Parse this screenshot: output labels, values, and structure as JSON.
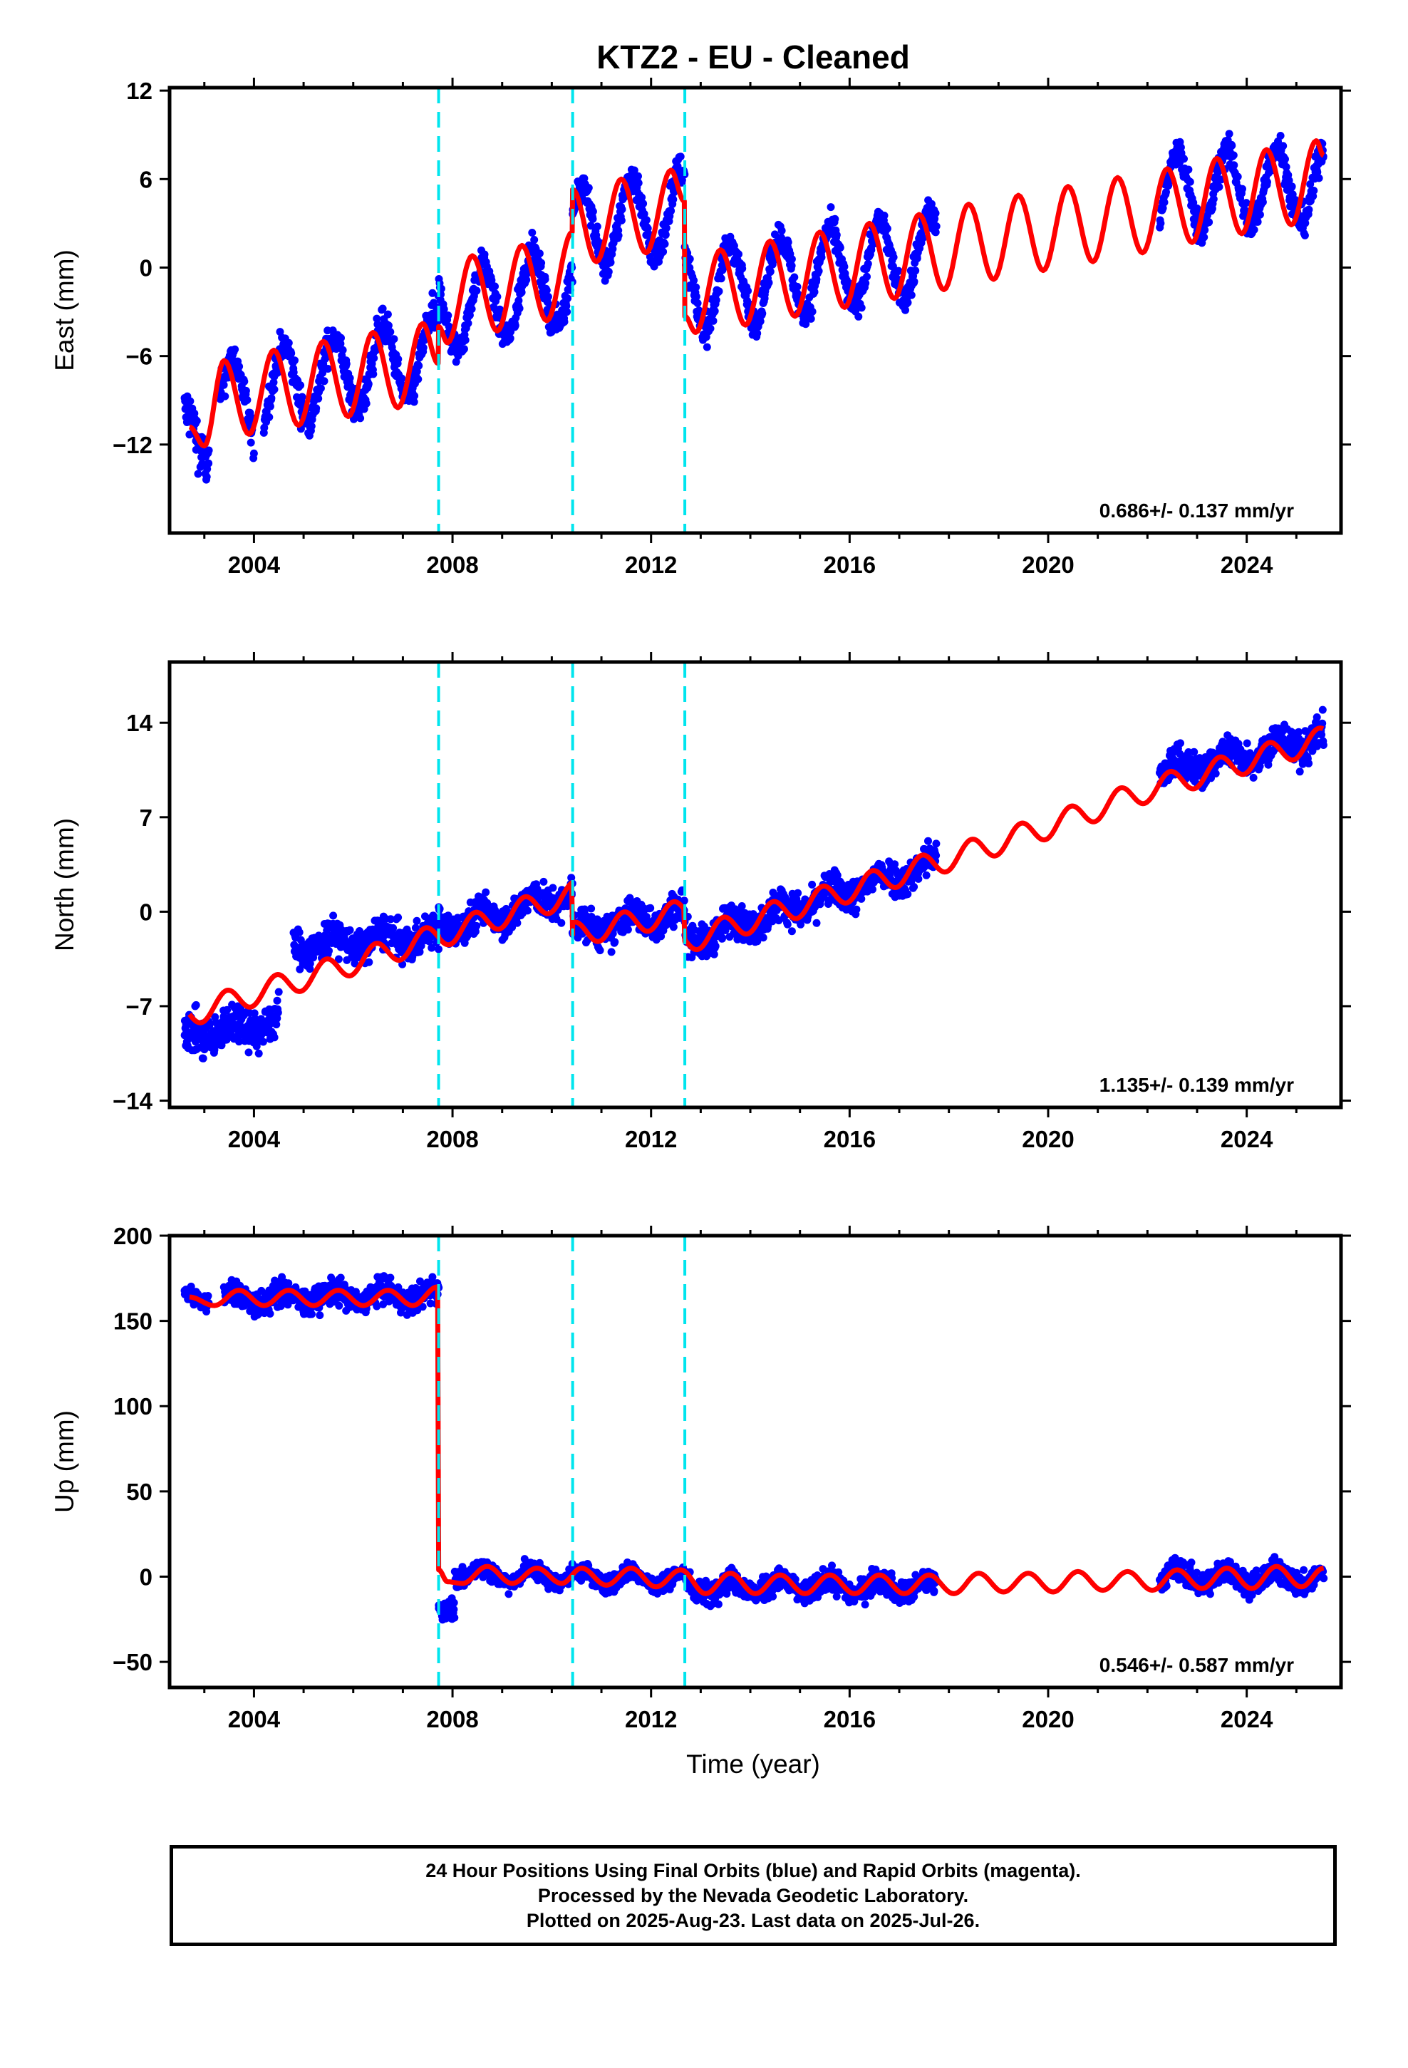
{
  "title": "KTZ2  - EU - Cleaned",
  "xlabel": "Time (year)",
  "caption": {
    "line1": "24 Hour Positions Using Final Orbits (blue) and Rapid Orbits (magenta).",
    "line2": "Processed by the Nevada Geodetic Laboratory.",
    "line3": "Plotted on 2025-Aug-23. Last data on 2025-Jul-26."
  },
  "colors": {
    "data": "#0000ff",
    "model": "#ff0000",
    "breaks": "#00e5ee",
    "frame": "#000000"
  },
  "chart_data": [
    {
      "type": "scatter",
      "name": "East",
      "ylabel": "East (mm)",
      "rate_label": "0.686+/- 0.137 mm/yr",
      "xlim": [
        2002.3,
        2025.9
      ],
      "ylim": [
        -18,
        12.2
      ],
      "xticks": [
        2004,
        2008,
        2012,
        2016,
        2020,
        2024
      ],
      "yticks": [
        -12,
        -6,
        0,
        6,
        12
      ],
      "breaks": [
        2007.72,
        2010.42,
        2012.68
      ],
      "model_knots": [
        [
          2002.7,
          -10.8
        ],
        [
          2003.0,
          -12.1
        ],
        [
          2003.4,
          -6.3
        ],
        [
          2003.9,
          -11.3
        ],
        [
          2004.4,
          -5.6
        ],
        [
          2004.9,
          -10.7
        ],
        [
          2005.4,
          -5.0
        ],
        [
          2005.9,
          -10.1
        ],
        [
          2006.4,
          -4.4
        ],
        [
          2006.9,
          -9.5
        ],
        [
          2007.4,
          -3.8
        ],
        [
          2007.71,
          -6.5
        ],
        [
          2007.72,
          -4.0
        ],
        [
          2007.9,
          -5.1
        ],
        [
          2008.4,
          0.8
        ],
        [
          2008.9,
          -4.3
        ],
        [
          2009.4,
          1.5
        ],
        [
          2009.9,
          -3.6
        ],
        [
          2010.41,
          2.4
        ],
        [
          2010.42,
          5.3
        ],
        [
          2010.9,
          0.4
        ],
        [
          2011.4,
          6.0
        ],
        [
          2011.9,
          1.0
        ],
        [
          2012.4,
          6.6
        ],
        [
          2012.67,
          4.5
        ],
        [
          2012.68,
          -3.3
        ],
        [
          2012.9,
          -4.4
        ],
        [
          2013.4,
          1.2
        ],
        [
          2013.9,
          -3.9
        ],
        [
          2014.4,
          1.8
        ],
        [
          2014.9,
          -3.3
        ],
        [
          2015.4,
          2.4
        ],
        [
          2015.9,
          -2.7
        ],
        [
          2016.4,
          3.0
        ],
        [
          2016.9,
          -2.1
        ],
        [
          2017.4,
          3.6
        ],
        [
          2017.9,
          -1.5
        ],
        [
          2018.4,
          4.3
        ],
        [
          2018.9,
          -0.8
        ],
        [
          2019.4,
          4.9
        ],
        [
          2019.9,
          -0.2
        ],
        [
          2020.4,
          5.5
        ],
        [
          2020.9,
          0.4
        ],
        [
          2021.4,
          6.1
        ],
        [
          2021.9,
          1.0
        ],
        [
          2022.4,
          6.7
        ],
        [
          2022.9,
          1.7
        ],
        [
          2023.4,
          7.4
        ],
        [
          2023.9,
          2.3
        ],
        [
          2024.4,
          8.0
        ],
        [
          2024.9,
          2.9
        ],
        [
          2025.4,
          8.6
        ],
        [
          2025.55,
          7.6
        ]
      ],
      "scatter_segments": [
        {
          "x0": 2002.6,
          "x1": 2003.1,
          "a": -12.0,
          "b": -11.0,
          "amp": 2.3,
          "noise": 2.2
        },
        {
          "x0": 2003.3,
          "x1": 2004.0,
          "a": -8.0,
          "b": -10.0,
          "amp": 2.5,
          "noise": 1.6
        },
        {
          "x0": 2004.2,
          "x1": 2007.72,
          "a": -8.3,
          "b": -5.8,
          "amp": 2.6,
          "noise": 1.5
        },
        {
          "x0": 2007.72,
          "x1": 2010.42,
          "a": -3.3,
          "b": -1.0,
          "amp": 2.6,
          "noise": 1.3
        },
        {
          "x0": 2010.42,
          "x1": 2012.68,
          "a": 2.5,
          "b": 4.0,
          "amp": 2.8,
          "noise": 1.4
        },
        {
          "x0": 2012.68,
          "x1": 2017.75,
          "a": -1.6,
          "b": 1.0,
          "amp": 2.7,
          "noise": 1.3
        },
        {
          "x0": 2022.25,
          "x1": 2025.55,
          "a": 5.0,
          "b": 5.8,
          "amp": 2.6,
          "noise": 1.4
        }
      ]
    },
    {
      "type": "scatter",
      "name": "North",
      "ylabel": "North (mm)",
      "rate_label": "1.135+/- 0.139 mm/yr",
      "xlim": [
        2002.3,
        2025.9
      ],
      "ylim": [
        -14.5,
        18.5
      ],
      "xticks": [
        2004,
        2008,
        2012,
        2016,
        2020,
        2024
      ],
      "yticks": [
        -14,
        -7,
        0,
        7,
        14
      ],
      "breaks": [
        2007.72,
        2010.42,
        2012.68
      ],
      "model_knots": [
        [
          2002.7,
          -7.6
        ],
        [
          2007.71,
          -1.8
        ],
        [
          2007.72,
          -1.8
        ],
        [
          2010.41,
          1.3
        ],
        [
          2010.42,
          -1.7
        ],
        [
          2012.67,
          0.0
        ],
        [
          2012.68,
          -2.2
        ],
        [
          2017.9,
          3.8
        ],
        [
          2020.0,
          6.3
        ],
        [
          2022.0,
          9.0
        ],
        [
          2025.55,
          12.8
        ]
      ],
      "model_wiggle": 0.9,
      "scatter_segments": [
        {
          "x0": 2002.6,
          "x1": 2004.5,
          "a": -9.3,
          "b": -8.0,
          "amp": 0.6,
          "noise": 2.0
        },
        {
          "x0": 2004.8,
          "x1": 2007.72,
          "a": -2.5,
          "b": -1.8,
          "amp": 0.6,
          "noise": 1.7
        },
        {
          "x0": 2007.72,
          "x1": 2010.42,
          "a": -1.3,
          "b": 1.3,
          "amp": 0.6,
          "noise": 1.6
        },
        {
          "x0": 2010.42,
          "x1": 2012.68,
          "a": -1.5,
          "b": 0.0,
          "amp": 0.6,
          "noise": 1.6
        },
        {
          "x0": 2012.68,
          "x1": 2017.75,
          "a": -2.2,
          "b": 3.6,
          "amp": 0.6,
          "noise": 1.6
        },
        {
          "x0": 2022.25,
          "x1": 2025.55,
          "a": 10.3,
          "b": 13.0,
          "amp": 0.6,
          "noise": 1.6
        }
      ]
    },
    {
      "type": "scatter",
      "name": "Up",
      "ylabel": "Up (mm)",
      "rate_label": "0.546+/- 0.587 mm/yr",
      "xlim": [
        2002.3,
        2025.9
      ],
      "ylim": [
        -65,
        200
      ],
      "xticks": [
        2004,
        2008,
        2012,
        2016,
        2020,
        2024
      ],
      "yticks": [
        -50,
        0,
        50,
        100,
        150,
        200
      ],
      "breaks": [
        2007.72,
        2010.42,
        2012.68
      ],
      "model_knots": [
        [
          2002.7,
          164
        ],
        [
          2003.2,
          159
        ],
        [
          2003.7,
          168
        ],
        [
          2004.2,
          159
        ],
        [
          2004.7,
          168
        ],
        [
          2005.2,
          159
        ],
        [
          2005.7,
          168
        ],
        [
          2006.2,
          159
        ],
        [
          2006.7,
          168
        ],
        [
          2007.2,
          159
        ],
        [
          2007.7,
          170
        ],
        [
          2007.72,
          4
        ],
        [
          2007.9,
          -3
        ],
        [
          2008.2,
          -4
        ],
        [
          2008.7,
          6
        ],
        [
          2009.2,
          -4
        ],
        [
          2009.7,
          5
        ],
        [
          2010.2,
          -4
        ],
        [
          2010.6,
          5
        ],
        [
          2011.1,
          -5
        ],
        [
          2011.6,
          5
        ],
        [
          2012.1,
          -6
        ],
        [
          2012.6,
          4
        ],
        [
          2013.1,
          -10
        ],
        [
          2013.6,
          2
        ],
        [
          2014.1,
          -10
        ],
        [
          2014.6,
          1
        ],
        [
          2015.1,
          -10
        ],
        [
          2015.6,
          1
        ],
        [
          2016.1,
          -10
        ],
        [
          2016.6,
          1
        ],
        [
          2017.1,
          -10
        ],
        [
          2017.6,
          1
        ],
        [
          2018.1,
          -10
        ],
        [
          2018.6,
          2
        ],
        [
          2019.1,
          -9
        ],
        [
          2019.6,
          2
        ],
        [
          2020.1,
          -9
        ],
        [
          2020.6,
          3
        ],
        [
          2021.1,
          -8
        ],
        [
          2021.6,
          3
        ],
        [
          2022.1,
          -8
        ],
        [
          2022.6,
          4
        ],
        [
          2023.1,
          -7
        ],
        [
          2023.6,
          5
        ],
        [
          2024.1,
          -7
        ],
        [
          2024.6,
          6
        ],
        [
          2025.1,
          -6
        ],
        [
          2025.55,
          5
        ]
      ],
      "scatter_segments": [
        {
          "x0": 2002.6,
          "x1": 2003.1,
          "a": 164,
          "b": 163,
          "amp": 3,
          "noise": 7
        },
        {
          "x0": 2003.4,
          "x1": 2007.72,
          "a": 163,
          "b": 165,
          "amp": 4,
          "noise": 10
        },
        {
          "x0": 2007.72,
          "x1": 2008.05,
          "a": -20,
          "b": -18,
          "amp": 2,
          "noise": 8
        },
        {
          "x0": 2008.05,
          "x1": 2012.68,
          "a": 2,
          "b": -2,
          "amp": 4,
          "noise": 7
        },
        {
          "x0": 2012.68,
          "x1": 2017.75,
          "a": -6,
          "b": -6,
          "amp": 4,
          "noise": 9
        },
        {
          "x0": 2022.25,
          "x1": 2025.55,
          "a": 0,
          "b": -1,
          "amp": 4,
          "noise": 9
        }
      ]
    }
  ]
}
